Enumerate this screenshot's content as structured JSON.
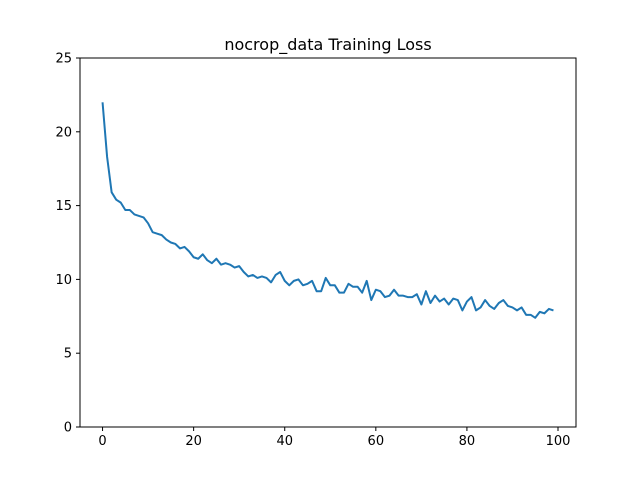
{
  "chart_data": {
    "type": "line",
    "title": "nocrop_data Training Loss",
    "xlabel": "",
    "ylabel": "",
    "xlim": [
      -4.95,
      103.95
    ],
    "ylim": [
      0,
      25
    ],
    "xticks": [
      0,
      20,
      40,
      60,
      80,
      100
    ],
    "yticks": [
      0,
      5,
      10,
      15,
      20,
      25
    ],
    "grid": false,
    "color": "#1f77b4",
    "series": [
      {
        "x": [
          0,
          1,
          2,
          3,
          4,
          5,
          6,
          7,
          8,
          9,
          10,
          11,
          12,
          13,
          14,
          15,
          16,
          17,
          18,
          19,
          20,
          21,
          22,
          23,
          24,
          25,
          26,
          27,
          28,
          29,
          30,
          31,
          32,
          33,
          34,
          35,
          36,
          37,
          38,
          39,
          40,
          41,
          42,
          43,
          44,
          45,
          46,
          47,
          48,
          49,
          50,
          51,
          52,
          53,
          54,
          55,
          56,
          57,
          58,
          59,
          60,
          61,
          62,
          63,
          64,
          65,
          66,
          67,
          68,
          69,
          70,
          71,
          72,
          73,
          74,
          75,
          76,
          77,
          78,
          79,
          80,
          81,
          82,
          83,
          84,
          85,
          86,
          87,
          88,
          89,
          90,
          91,
          92,
          93,
          94,
          95,
          96,
          97,
          98,
          99
        ],
        "values": [
          22.0,
          18.3,
          15.9,
          15.4,
          15.2,
          14.7,
          14.7,
          14.4,
          14.3,
          14.2,
          13.8,
          13.2,
          13.1,
          13.0,
          12.7,
          12.5,
          12.4,
          12.1,
          12.2,
          11.9,
          11.5,
          11.4,
          11.7,
          11.3,
          11.1,
          11.4,
          11.0,
          11.1,
          11.0,
          10.8,
          10.9,
          10.5,
          10.2,
          10.3,
          10.1,
          10.2,
          10.1,
          9.8,
          10.3,
          10.5,
          9.9,
          9.6,
          9.9,
          10.0,
          9.6,
          9.7,
          9.9,
          9.2,
          9.2,
          10.1,
          9.6,
          9.6,
          9.1,
          9.1,
          9.7,
          9.5,
          9.5,
          9.1,
          9.9,
          8.6,
          9.3,
          9.2,
          8.8,
          8.9,
          9.3,
          8.9,
          8.9,
          8.8,
          8.8,
          9.0,
          8.3,
          9.2,
          8.4,
          8.9,
          8.5,
          8.7,
          8.3,
          8.7,
          8.6,
          7.9,
          8.5,
          8.8,
          7.9,
          8.1,
          8.6,
          8.2,
          8.0,
          8.4,
          8.6,
          8.2,
          8.1,
          7.9,
          8.1,
          7.6,
          7.6,
          7.4,
          7.8,
          7.7,
          8.0,
          7.9
        ]
      }
    ]
  }
}
